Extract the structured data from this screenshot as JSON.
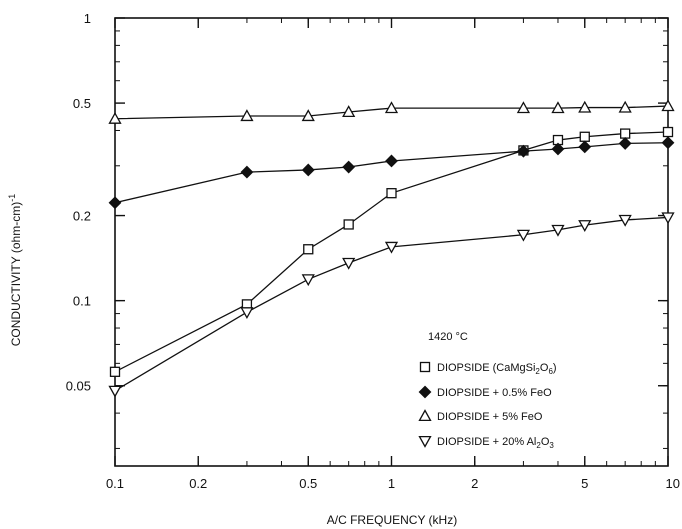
{
  "chart_data": {
    "type": "line",
    "x_scale": "log",
    "y_scale": "log",
    "xlim": [
      0.1,
      10
    ],
    "ylim": [
      0.026,
      1
    ],
    "xlabel": "A/C FREQUENCY (kHz)",
    "ylabel": "CONDUCTIVITY (ohm-cm)⁻¹",
    "x_ticks": [
      {
        "value": 0.1,
        "label": "0.1"
      },
      {
        "value": 0.2,
        "label": "0.2"
      },
      {
        "value": 0.5,
        "label": "0.5"
      },
      {
        "value": 1,
        "label": "1"
      },
      {
        "value": 2,
        "label": "2"
      },
      {
        "value": 5,
        "label": "5"
      },
      {
        "value": 10,
        "label": "10"
      }
    ],
    "y_ticks": [
      {
        "value": 0.05,
        "label": "0.05"
      },
      {
        "value": 0.1,
        "label": "0.1"
      },
      {
        "value": 0.2,
        "label": "0.2"
      },
      {
        "value": 0.5,
        "label": "0.5"
      },
      {
        "value": 1,
        "label": "1"
      }
    ],
    "grid": false,
    "legend_title": "1420 °C",
    "legend_position": "bottom-right",
    "series": [
      {
        "name": "DIOPSIDE (CaMgSi2O6)",
        "marker": "square",
        "points": [
          [
            0.1,
            0.056
          ],
          [
            0.3,
            0.097
          ],
          [
            0.5,
            0.152
          ],
          [
            0.7,
            0.186
          ],
          [
            1,
            0.24
          ],
          [
            3,
            0.34
          ],
          [
            4,
            0.37
          ],
          [
            5,
            0.38
          ],
          [
            7,
            0.39
          ],
          [
            10,
            0.395
          ]
        ]
      },
      {
        "name": "DIOPSIDE + 0.5% FeO",
        "marker": "diamond",
        "points": [
          [
            0.1,
            0.222
          ],
          [
            0.3,
            0.285
          ],
          [
            0.5,
            0.29
          ],
          [
            0.7,
            0.297
          ],
          [
            1,
            0.312
          ],
          [
            3,
            0.338
          ],
          [
            4,
            0.344
          ],
          [
            5,
            0.35
          ],
          [
            7,
            0.36
          ],
          [
            10,
            0.362
          ]
        ]
      },
      {
        "name": "DIOPSIDE + 5% FeO",
        "marker": "triangle-up",
        "points": [
          [
            0.1,
            0.44
          ],
          [
            0.3,
            0.45
          ],
          [
            0.5,
            0.45
          ],
          [
            0.7,
            0.465
          ],
          [
            1,
            0.48
          ],
          [
            3,
            0.48
          ],
          [
            4,
            0.48
          ],
          [
            5,
            0.482
          ],
          [
            7,
            0.482
          ],
          [
            10,
            0.488
          ]
        ]
      },
      {
        "name": "DIOPSIDE + 20% Al2O3",
        "marker": "triangle-down",
        "points": [
          [
            0.1,
            0.048
          ],
          [
            0.3,
            0.091
          ],
          [
            0.5,
            0.119
          ],
          [
            0.7,
            0.136
          ],
          [
            1,
            0.155
          ],
          [
            3,
            0.171
          ],
          [
            4,
            0.178
          ],
          [
            5,
            0.185
          ],
          [
            7,
            0.193
          ],
          [
            10,
            0.197
          ]
        ]
      }
    ]
  }
}
